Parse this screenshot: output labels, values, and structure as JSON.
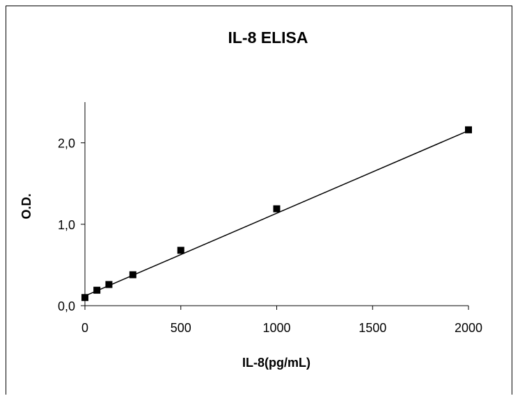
{
  "chart_data": {
    "type": "scatter",
    "title": "IL-8 ELISA",
    "xlabel": "IL-8(pg/mL)",
    "ylabel": "O.D.",
    "xlim": [
      0,
      2000
    ],
    "ylim": [
      0,
      2.5
    ],
    "x_ticks": [
      0,
      500,
      1000,
      1500,
      2000
    ],
    "x_tick_labels": [
      "0",
      "500",
      "1000",
      "1500",
      "2000"
    ],
    "y_ticks": [
      0,
      1,
      2
    ],
    "y_tick_labels": [
      "0,0",
      "1,0",
      "2,0"
    ],
    "grid": false,
    "legend": "none",
    "series": [
      {
        "x": [
          0,
          62.5,
          125,
          250,
          500,
          1000,
          2000
        ],
        "y": [
          0.1,
          0.19,
          0.26,
          0.38,
          0.68,
          1.19,
          2.16
        ]
      }
    ],
    "trendline": {
      "type": "linear",
      "x": [
        0,
        2000
      ],
      "y": [
        0.12,
        2.15
      ]
    },
    "colors": {
      "marker": "#000000",
      "line": "#000000",
      "axis": "#000000"
    }
  }
}
